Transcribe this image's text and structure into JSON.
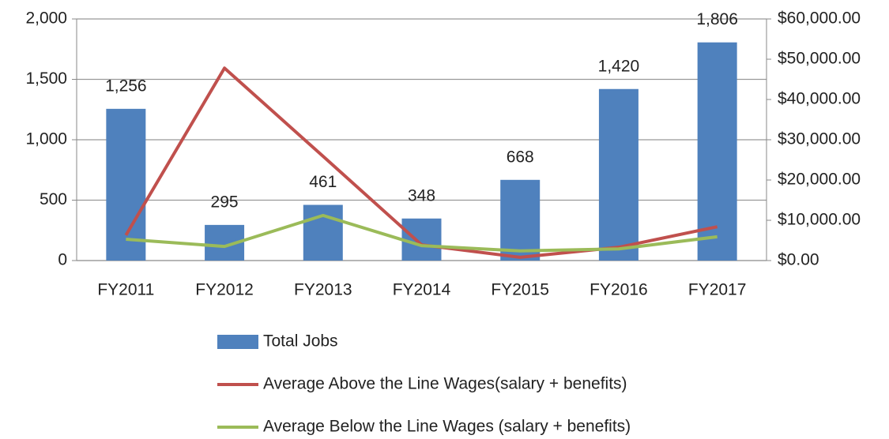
{
  "chart_data": {
    "type": "bar",
    "categories": [
      "FY2011",
      "FY2012",
      "FY2013",
      "FY2014",
      "FY2015",
      "FY2016",
      "FY2017"
    ],
    "series": [
      {
        "name": "Total Jobs",
        "type": "bar",
        "color": "#4f81bd",
        "values": [
          1256,
          295,
          461,
          348,
          668,
          1420,
          1806
        ],
        "value_labels": [
          "1,256",
          "295",
          "461",
          "348",
          "668",
          "1,420",
          "1,806"
        ]
      },
      {
        "name": "Average Above the Line Wages(salary + benefits)",
        "type": "line",
        "axis": "y2",
        "color": "#c0504d",
        "values": [
          6300,
          47800,
          25900,
          3900,
          800,
          3300,
          8400
        ]
      },
      {
        "name": "Average Below the Line Wages (salary + benefits)",
        "type": "line",
        "axis": "y2",
        "color": "#9bbb59",
        "values": [
          5300,
          3500,
          11200,
          3700,
          2400,
          2900,
          5900
        ]
      }
    ],
    "ylim": [
      0,
      2000
    ],
    "yticks": [
      0,
      500,
      {
        "value": 1000,
        "label": "1,000"
      },
      {
        "value": 1500,
        "label": "1,500"
      },
      {
        "value": 2000,
        "label": "2,000"
      }
    ],
    "y2lim": [
      0,
      60000
    ],
    "y2ticks": [
      {
        "value": 0,
        "label": "$0.00"
      },
      {
        "value": 10000,
        "label": "$10,000.00"
      },
      {
        "value": 20000,
        "label": "$20,000.00"
      },
      {
        "value": 30000,
        "label": "$30,000.00"
      },
      {
        "value": 40000,
        "label": "$40,000.00"
      },
      {
        "value": 50000,
        "label": "$50,000.00"
      },
      {
        "value": 60000,
        "label": "$60,000.00"
      }
    ],
    "grid": true,
    "legend": "bottom"
  }
}
